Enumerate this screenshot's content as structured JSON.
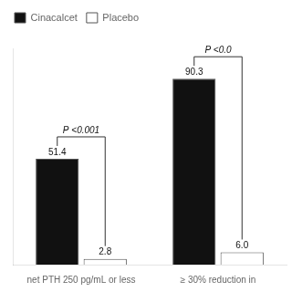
{
  "chart_data": {
    "type": "bar",
    "categories": [
      "net PTH 250 pg/mL or less",
      "≥ 30% reduction in"
    ],
    "series": [
      {
        "name": "Cinacalcet",
        "color": "#111111",
        "values": [
          51.4,
          90.3
        ],
        "value_labels": [
          "51.4",
          "90.3"
        ]
      },
      {
        "name": "Placebo",
        "color": "#ffffff",
        "values": [
          2.8,
          6.0
        ],
        "value_labels": [
          "2.8",
          "6.0"
        ]
      }
    ],
    "ylim": [
      0,
      105
    ],
    "data_labels": true,
    "tick_labels": "x",
    "grid": false,
    "legend": "top",
    "annotations": [
      {
        "category": "net PTH 250 pg/mL or less",
        "text": "P <0.001"
      },
      {
        "category": "≥ 30% reduction in",
        "text": "P <0.0"
      }
    ]
  }
}
